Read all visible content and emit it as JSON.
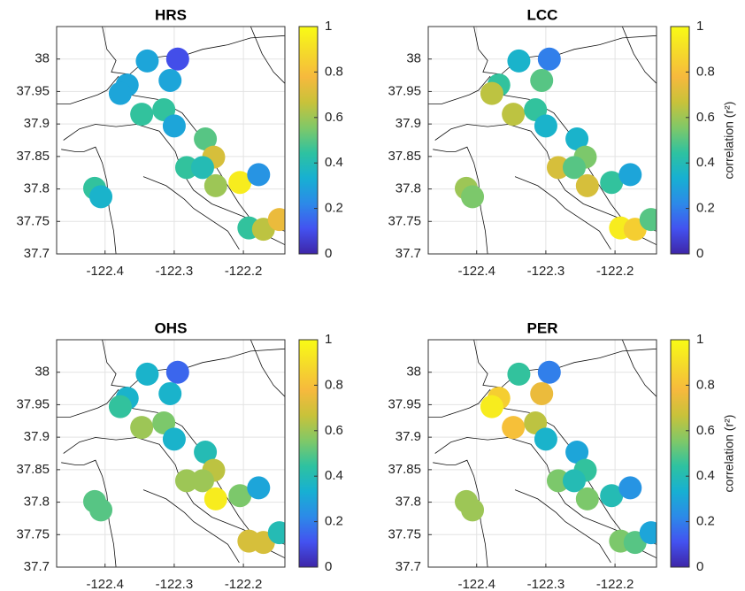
{
  "chart_data": [
    {
      "type": "scatter",
      "title": "HRS",
      "x": [
        -122.339,
        -122.295,
        -122.368,
        -122.378,
        -122.306,
        -122.347,
        -122.315,
        -122.3,
        -122.255,
        -122.243,
        -122.282,
        -122.259,
        -122.24,
        -122.205,
        -122.178,
        -122.415,
        -122.406,
        -122.192,
        -122.171,
        -122.148
      ],
      "y": [
        37.997,
        38.0,
        37.96,
        37.947,
        37.967,
        37.915,
        37.922,
        37.897,
        37.877,
        37.849,
        37.833,
        37.833,
        37.805,
        37.81,
        37.822,
        37.801,
        37.788,
        37.74,
        37.738,
        37.753
      ],
      "values": [
        0.3,
        0.1,
        0.3,
        0.3,
        0.3,
        0.45,
        0.45,
        0.3,
        0.5,
        0.7,
        0.45,
        0.4,
        0.6,
        0.95,
        0.25,
        0.45,
        0.35,
        0.45,
        0.65,
        0.75
      ],
      "xlim": [
        -122.47,
        -122.14
      ],
      "ylim": [
        37.7,
        38.05
      ],
      "xticks": [
        -122.4,
        -122.3,
        -122.2
      ],
      "yticks": [
        37.7,
        37.75,
        37.8,
        37.85,
        37.9,
        37.95,
        38
      ],
      "clim": [
        0,
        1
      ],
      "cticks": [
        0,
        0.2,
        0.4,
        0.6,
        0.8,
        1
      ],
      "grid": true,
      "colormap": [
        "#3e26a8",
        "#4352f0",
        "#2c8ae8",
        "#17b0d2",
        "#2ec2a0",
        "#80c868",
        "#c8c23a",
        "#f6b93d",
        "#f5da2a",
        "#f9fb15"
      ]
    },
    {
      "type": "scatter",
      "title": "LCC",
      "colorbar_label": "correlation (r²)",
      "x": [
        -122.339,
        -122.295,
        -122.368,
        -122.378,
        -122.306,
        -122.347,
        -122.315,
        -122.3,
        -122.255,
        -122.243,
        -122.282,
        -122.259,
        -122.24,
        -122.205,
        -122.178,
        -122.415,
        -122.406,
        -122.192,
        -122.171,
        -122.148
      ],
      "y": [
        37.997,
        38.0,
        37.96,
        37.947,
        37.967,
        37.915,
        37.922,
        37.897,
        37.877,
        37.849,
        37.833,
        37.833,
        37.805,
        37.81,
        37.822,
        37.801,
        37.788,
        37.74,
        37.738,
        37.753
      ],
      "values": [
        0.35,
        0.2,
        0.45,
        0.65,
        0.5,
        0.65,
        0.45,
        0.35,
        0.35,
        0.55,
        0.7,
        0.5,
        0.7,
        0.45,
        0.3,
        0.6,
        0.55,
        0.95,
        0.85,
        0.5
      ],
      "xlim": [
        -122.47,
        -122.14
      ],
      "ylim": [
        37.7,
        38.05
      ],
      "xticks": [
        -122.4,
        -122.3,
        -122.2
      ],
      "yticks": [
        37.7,
        37.75,
        37.8,
        37.85,
        37.9,
        37.95,
        38
      ],
      "clim": [
        0,
        1
      ],
      "cticks": [
        0,
        0.2,
        0.4,
        0.6,
        0.8,
        1
      ],
      "grid": true,
      "colormap": [
        "#3e26a8",
        "#4352f0",
        "#2c8ae8",
        "#17b0d2",
        "#2ec2a0",
        "#80c868",
        "#c8c23a",
        "#f6b93d",
        "#f5da2a",
        "#f9fb15"
      ]
    },
    {
      "type": "scatter",
      "title": "OHS",
      "x": [
        -122.339,
        -122.295,
        -122.368,
        -122.378,
        -122.306,
        -122.347,
        -122.315,
        -122.3,
        -122.255,
        -122.243,
        -122.282,
        -122.259,
        -122.24,
        -122.205,
        -122.178,
        -122.415,
        -122.406,
        -122.192,
        -122.171,
        -122.148
      ],
      "y": [
        37.997,
        38.0,
        37.96,
        37.947,
        37.967,
        37.915,
        37.922,
        37.897,
        37.877,
        37.849,
        37.833,
        37.833,
        37.805,
        37.81,
        37.822,
        37.801,
        37.788,
        37.74,
        37.738,
        37.753
      ],
      "values": [
        0.35,
        0.15,
        0.35,
        0.45,
        0.35,
        0.6,
        0.55,
        0.35,
        0.4,
        0.65,
        0.6,
        0.6,
        0.95,
        0.55,
        0.3,
        0.5,
        0.5,
        0.7,
        0.7,
        0.4
      ],
      "xlim": [
        -122.47,
        -122.14
      ],
      "ylim": [
        37.7,
        38.05
      ],
      "xticks": [
        -122.4,
        -122.3,
        -122.2
      ],
      "yticks": [
        37.7,
        37.75,
        37.8,
        37.85,
        37.9,
        37.95,
        38
      ],
      "clim": [
        0,
        1
      ],
      "cticks": [
        0,
        0.2,
        0.4,
        0.6,
        0.8,
        1
      ],
      "grid": true,
      "colormap": [
        "#3e26a8",
        "#4352f0",
        "#2c8ae8",
        "#17b0d2",
        "#2ec2a0",
        "#80c868",
        "#c8c23a",
        "#f6b93d",
        "#f5da2a",
        "#f9fb15"
      ]
    },
    {
      "type": "scatter",
      "title": "PER",
      "colorbar_label": "correlation (r²)",
      "x": [
        -122.339,
        -122.295,
        -122.368,
        -122.378,
        -122.306,
        -122.347,
        -122.315,
        -122.3,
        -122.255,
        -122.243,
        -122.282,
        -122.259,
        -122.24,
        -122.205,
        -122.178,
        -122.415,
        -122.406,
        -122.192,
        -122.171,
        -122.148
      ],
      "y": [
        37.997,
        38.0,
        37.96,
        37.947,
        37.967,
        37.915,
        37.922,
        37.897,
        37.877,
        37.849,
        37.833,
        37.833,
        37.805,
        37.81,
        37.822,
        37.801,
        37.788,
        37.74,
        37.738,
        37.753
      ],
      "values": [
        0.45,
        0.2,
        0.85,
        0.95,
        0.75,
        0.8,
        0.65,
        0.35,
        0.3,
        0.45,
        0.55,
        0.4,
        0.55,
        0.4,
        0.25,
        0.6,
        0.6,
        0.55,
        0.5,
        0.3
      ],
      "xlim": [
        -122.47,
        -122.14
      ],
      "ylim": [
        37.7,
        38.05
      ],
      "xticks": [
        -122.4,
        -122.3,
        -122.2
      ],
      "yticks": [
        37.7,
        37.75,
        37.8,
        37.85,
        37.9,
        37.95,
        38
      ],
      "clim": [
        0,
        1
      ],
      "cticks": [
        0,
        0.2,
        0.4,
        0.6,
        0.8,
        1
      ],
      "grid": true,
      "colormap": [
        "#3e26a8",
        "#4352f0",
        "#2c8ae8",
        "#17b0d2",
        "#2ec2a0",
        "#80c868",
        "#c8c23a",
        "#f6b93d",
        "#f5da2a",
        "#f9fb15"
      ]
    }
  ]
}
